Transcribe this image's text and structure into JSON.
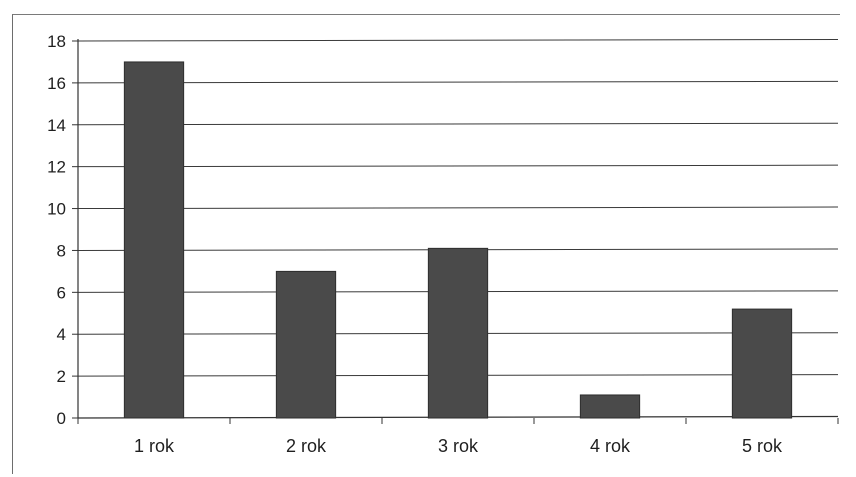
{
  "chart_data": {
    "type": "bar",
    "categories": [
      "1 rok",
      "2 rok",
      "3 rok",
      "4 rok",
      "5 rok"
    ],
    "values": [
      17,
      7,
      8.1,
      1.1,
      5.2
    ],
    "ylim": [
      0,
      18
    ],
    "yticks": [
      0,
      2,
      4,
      6,
      8,
      10,
      12,
      14,
      16,
      18
    ],
    "grid": true,
    "legend": "none",
    "bar_color": "#4a4a4a",
    "grid_color": "#3a3a3a"
  }
}
